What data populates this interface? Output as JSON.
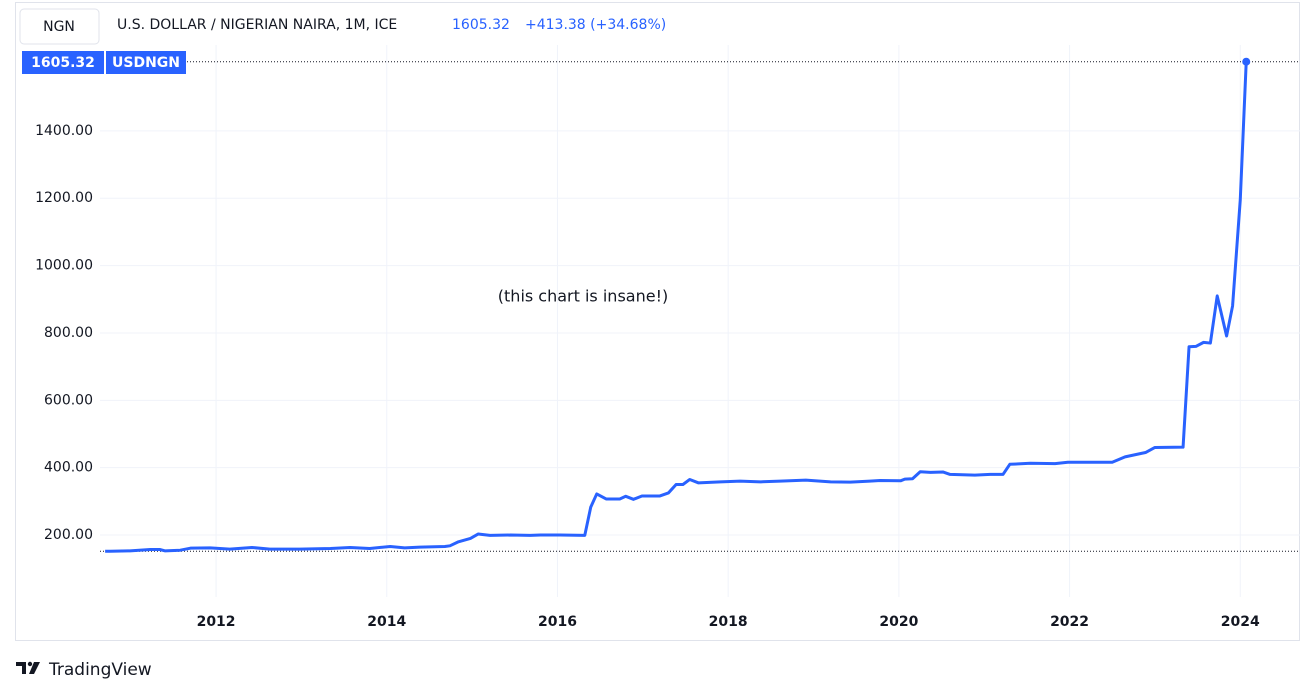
{
  "header": {
    "symbol_box": "NGN",
    "title": "U.S. DOLLAR / NIGERIAN NAIRA, 1M, ICE",
    "last_value": "1605.32",
    "change": "+413.38 (+34.68%)",
    "badge_symbol": "USDNGN"
  },
  "chart_data": {
    "type": "line",
    "annotation": "(this chart is insane!)",
    "x": [
      2010.7,
      2010.76,
      2010.99,
      2011.23,
      2011.34,
      2011.4,
      2011.58,
      2011.7,
      2011.93,
      2012.16,
      2012.42,
      2012.63,
      2012.98,
      2013.34,
      2013.57,
      2013.8,
      2014.04,
      2014.21,
      2014.39,
      2014.68,
      2014.74,
      2014.84,
      2014.98,
      2015.07,
      2015.21,
      2015.45,
      2015.68,
      2015.8,
      2016.03,
      2016.32,
      2016.39,
      2016.46,
      2016.57,
      2016.73,
      2016.8,
      2016.89,
      2016.99,
      2017.2,
      2017.3,
      2017.39,
      2017.47,
      2017.55,
      2017.65,
      2017.91,
      2018.14,
      2018.38,
      2018.61,
      2018.91,
      2019.2,
      2019.43,
      2019.66,
      2019.78,
      2020.02,
      2020.07,
      2020.16,
      2020.25,
      2020.37,
      2020.52,
      2020.6,
      2020.89,
      2021.07,
      2021.22,
      2021.3,
      2021.54,
      2021.83,
      2021.98,
      2022.24,
      2022.5,
      2022.65,
      2022.89,
      2023.0,
      2023.33,
      2023.4,
      2023.48,
      2023.57,
      2023.65,
      2023.73,
      2023.84,
      2023.91,
      2024.0,
      2024.07
    ],
    "series": [
      {
        "name": "USDNGN",
        "color": "#2962ff",
        "values": [
          152,
          152,
          153,
          157,
          157,
          153,
          155,
          161,
          162,
          158,
          163,
          158,
          158,
          160,
          163,
          160,
          166,
          162,
          164,
          166,
          168,
          180,
          190,
          203,
          199,
          200,
          199,
          200,
          200,
          199,
          283,
          322,
          307,
          307,
          315,
          306,
          316,
          316,
          325,
          350,
          350,
          365,
          355,
          358,
          360,
          358,
          360,
          363,
          358,
          357,
          360,
          362,
          361,
          366,
          367,
          388,
          386,
          387,
          380,
          378,
          380,
          380,
          410,
          413,
          412,
          416,
          416,
          416,
          432,
          445,
          460,
          461,
          759,
          760,
          772,
          770,
          910,
          791,
          880,
          1195,
          1605.32
        ]
      }
    ],
    "xlim": [
      2010.64,
      2024.7
    ],
    "xticks": [
      2012,
      2014,
      2016,
      2018,
      2020,
      2022,
      2024
    ],
    "ylim": [
      16,
      1655
    ],
    "yticks": [
      {
        "value": 200,
        "label": "200.00"
      },
      {
        "value": 400,
        "label": "400.00"
      },
      {
        "value": 600,
        "label": "600.00"
      },
      {
        "value": 800,
        "label": "800.00"
      },
      {
        "value": 1000,
        "label": "1000.00"
      },
      {
        "value": 1200,
        "label": "1200.00"
      },
      {
        "value": 1400,
        "label": "1400.00"
      }
    ],
    "grid": true
  },
  "footer": {
    "brand": "TradingView"
  }
}
